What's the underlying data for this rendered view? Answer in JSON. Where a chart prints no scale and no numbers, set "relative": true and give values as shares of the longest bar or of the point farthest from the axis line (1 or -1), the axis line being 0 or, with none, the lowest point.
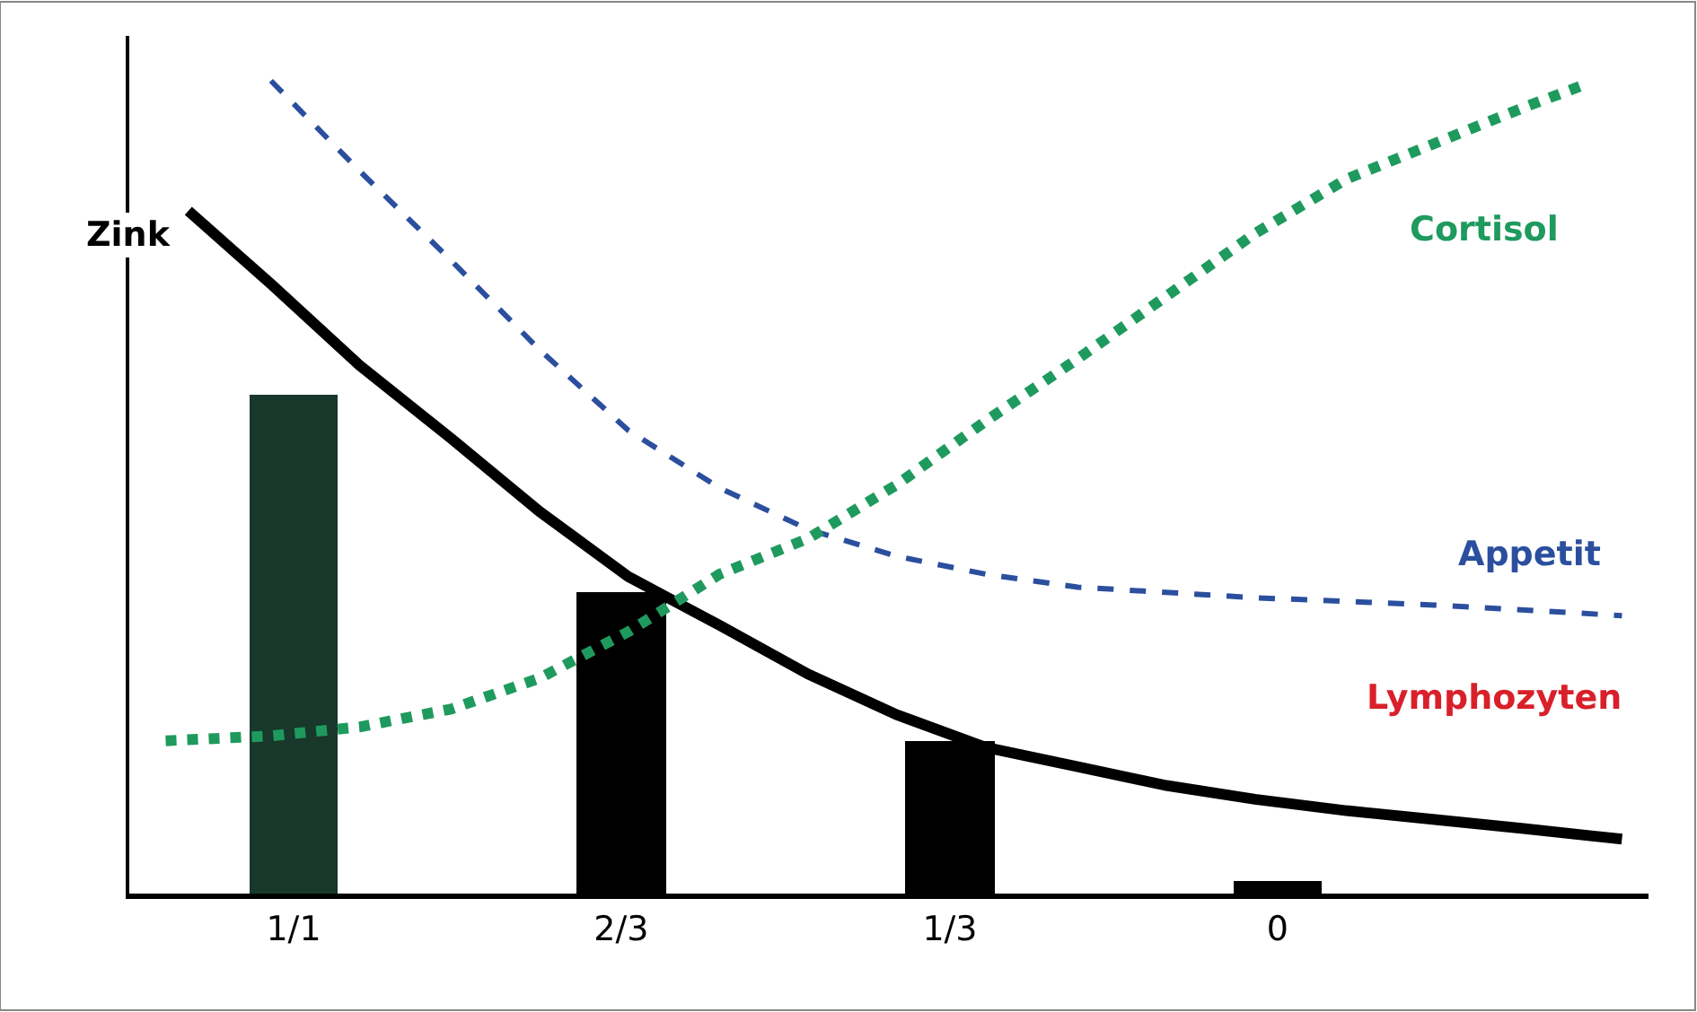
{
  "chart_data": {
    "type": "bar",
    "relative": true,
    "xticks": [
      {
        "value": 1,
        "label": "1/1"
      },
      {
        "value": 0.667,
        "label": "2/3"
      },
      {
        "value": 0.333,
        "label": "1/3"
      },
      0
    ],
    "xlim": [
      1.167,
      -0.377
    ],
    "series": [
      {
        "x": [
          1,
          0.667,
          0.333,
          0
        ],
        "values": [
          0.614,
          0.371,
          0.188,
          0.015
        ],
        "colors": [
          "#17382a",
          "#000000",
          "#000000",
          "#000000"
        ]
      },
      {
        "type": "line",
        "name": "Zink",
        "color": "#000000",
        "line_style": "solid",
        "x": [
          1.107,
          1.023,
          0.933,
          0.84,
          0.75,
          0.66,
          0.567,
          0.477,
          0.387,
          0.297,
          0.203,
          0.113,
          0.023,
          -0.07,
          -0.16,
          -0.25,
          -0.35
        ],
        "values": [
          0.84,
          0.75,
          0.65,
          0.56,
          0.47,
          0.39,
          0.33,
          0.27,
          0.22,
          0.18,
          0.156,
          0.133,
          0.116,
          0.102,
          0.091,
          0.08,
          0.067
        ]
      },
      {
        "type": "line",
        "name": "Appetit",
        "color": "#2b4f9e",
        "line_style": "dashed",
        "x": [
          1.023,
          0.933,
          0.84,
          0.75,
          0.66,
          0.567,
          0.477,
          0.387,
          0.297,
          0.203,
          0.023,
          -0.16,
          -0.35
        ],
        "values": [
          1.0,
          0.889,
          0.779,
          0.669,
          0.57,
          0.499,
          0.448,
          0.415,
          0.393,
          0.377,
          0.364,
          0.355,
          0.342
        ]
      },
      {
        "type": "line",
        "name": "Cortisol",
        "color": "#1f9a5e",
        "line_style": "dotted",
        "x": [
          1.13,
          1.023,
          0.933,
          0.84,
          0.75,
          0.66,
          0.567,
          0.477,
          0.387,
          0.297,
          0.203,
          0.113,
          0.023,
          -0.07,
          -0.16,
          -0.25,
          -0.307
        ],
        "values": [
          0.188,
          0.194,
          0.205,
          0.227,
          0.265,
          0.322,
          0.393,
          0.437,
          0.503,
          0.581,
          0.658,
          0.735,
          0.812,
          0.879,
          0.923,
          0.967,
          0.993
        ]
      }
    ],
    "annotations": [
      "Lymphozyten"
    ],
    "legend": false
  }
}
